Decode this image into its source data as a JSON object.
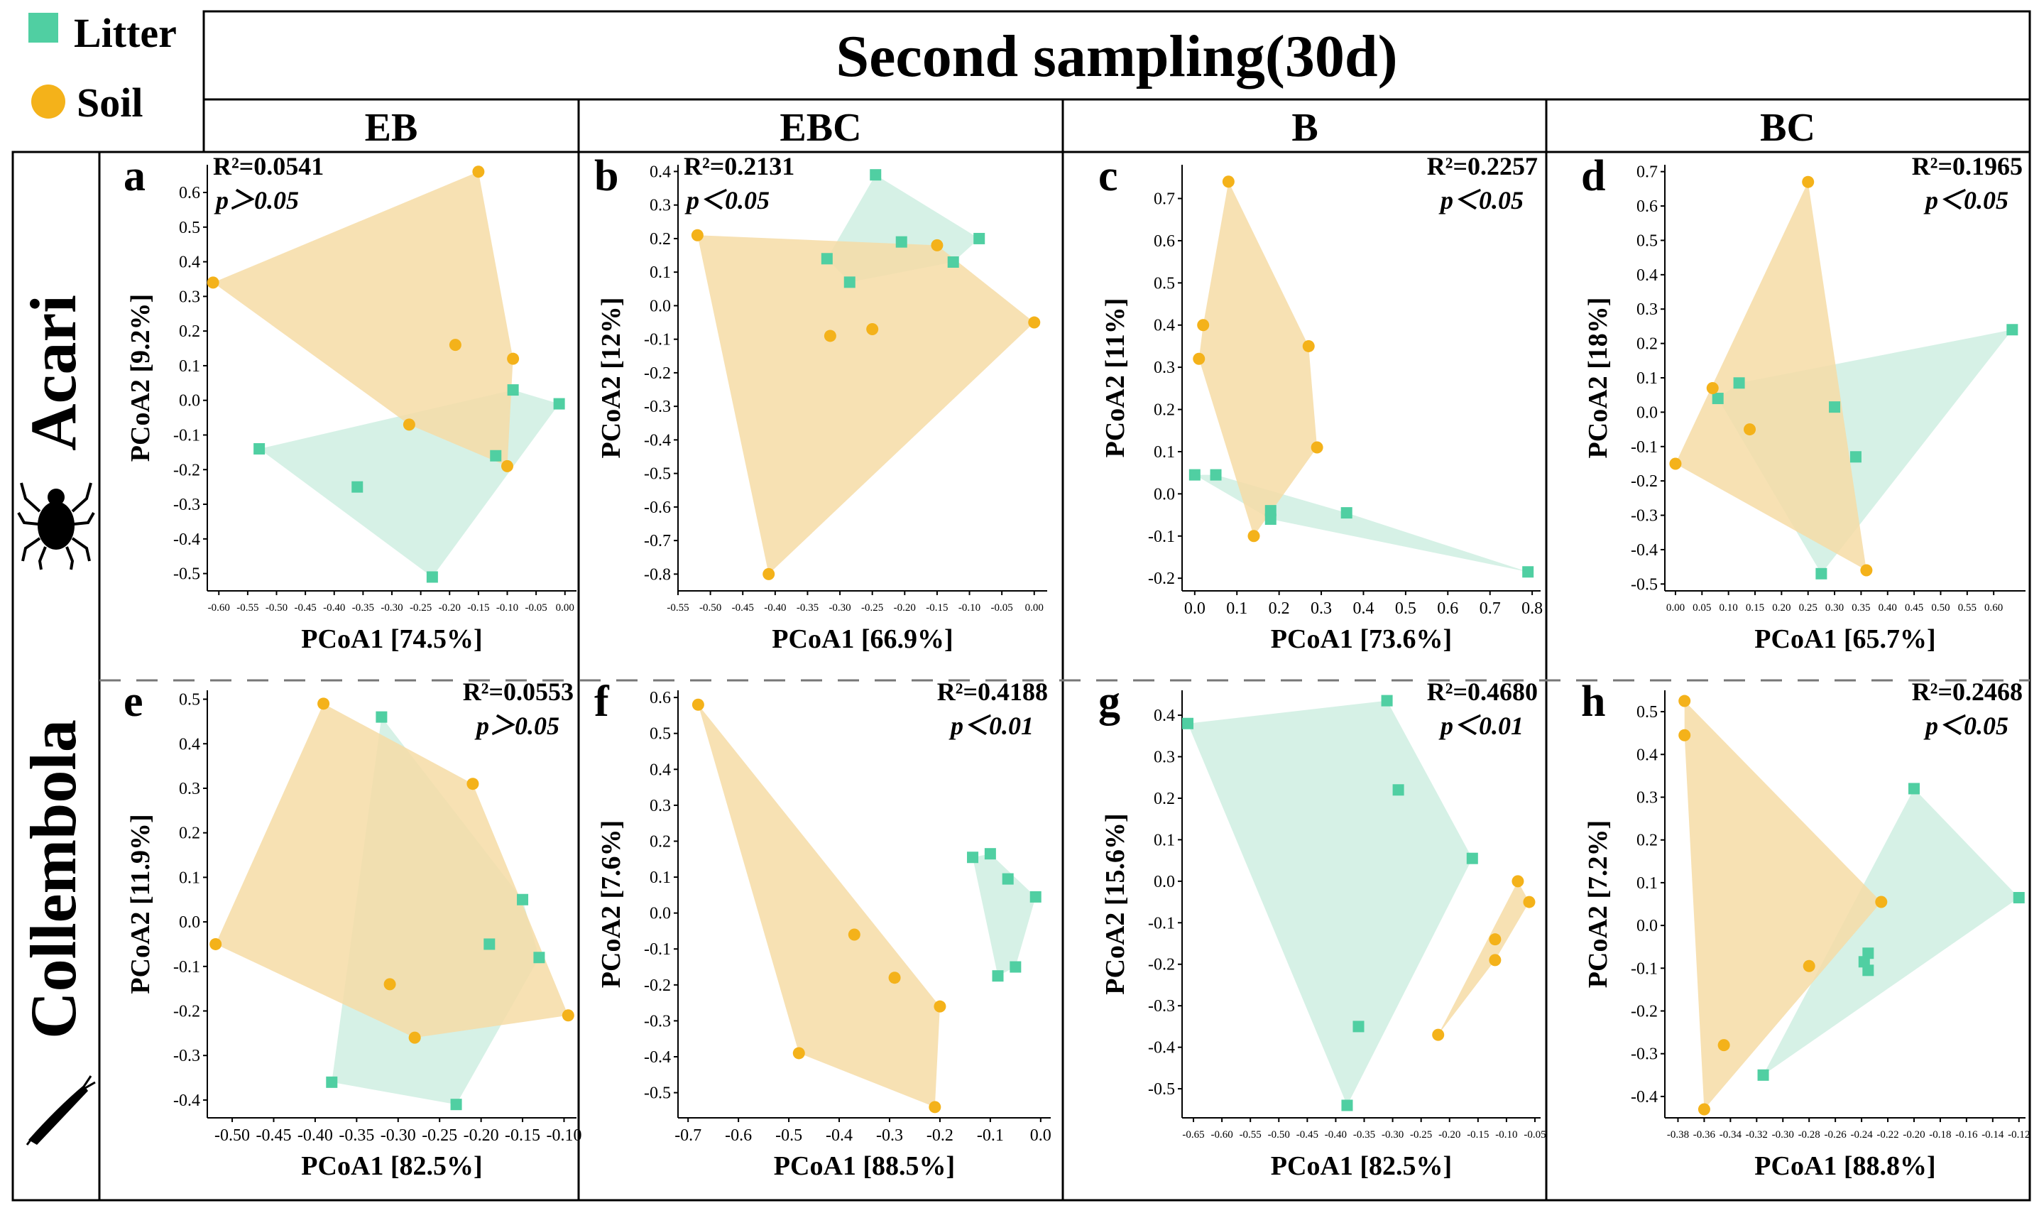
{
  "figure": {
    "title": "Second sampling(30d)",
    "legend": [
      {
        "label": "Litter",
        "color": "#50cfa2",
        "marker": "square"
      },
      {
        "label": "Soil",
        "color": "#f4b21a",
        "marker": "circle"
      }
    ],
    "columns": [
      "EB",
      "EBC",
      "B",
      "BC"
    ],
    "rows": [
      "Acari",
      "Collembola"
    ],
    "colors": {
      "litter_fill": "#cfeee2",
      "soil_fill": "#f6dca6",
      "litter_point": "#50cfa2",
      "soil_point": "#f4b21a"
    }
  },
  "chart_data": [
    {
      "panel": "a",
      "type": "scatter",
      "title": "",
      "r2_label": "R²=0.0541",
      "p_label": "p＞0.05",
      "xlabel": "PCoA1 [74.5%]",
      "ylabel": "PCoA2 [9.2%]",
      "xlim": [
        -0.62,
        0.02
      ],
      "ylim": [
        -0.55,
        0.68
      ],
      "xticks": [
        -0.6,
        -0.55,
        -0.5,
        -0.45,
        -0.4,
        -0.35,
        -0.3,
        -0.25,
        -0.2,
        -0.15,
        -0.1,
        -0.05,
        0.0
      ],
      "xtick_labels": [
        "-0.60",
        "-0.55",
        "-0.50",
        "-0.45",
        "-0.40",
        "-0.35",
        "-0.30",
        "-0.25",
        "-0.20",
        "-0.15",
        "-0.10",
        "-0.05",
        "0.00"
      ],
      "yticks": [
        -0.5,
        -0.4,
        -0.3,
        -0.2,
        -0.1,
        0.0,
        0.1,
        0.2,
        0.3,
        0.4,
        0.5,
        0.6
      ],
      "ytick_labels": [
        "-0.5",
        "-0.4",
        "-0.3",
        "-0.2",
        "-0.1",
        "0.0",
        "0.1",
        "0.2",
        "0.3",
        "0.4",
        "0.5",
        "0.6"
      ],
      "series": [
        {
          "name": "Litter",
          "points": [
            [
              -0.53,
              -0.14
            ],
            [
              -0.36,
              -0.25
            ],
            [
              -0.23,
              -0.51
            ],
            [
              -0.12,
              -0.16
            ],
            [
              -0.09,
              0.03
            ],
            [
              -0.01,
              -0.01
            ]
          ]
        },
        {
          "name": "Soil",
          "points": [
            [
              -0.61,
              0.34
            ],
            [
              -0.15,
              0.66
            ],
            [
              -0.09,
              0.12
            ],
            [
              -0.19,
              0.16
            ],
            [
              -0.27,
              -0.07
            ],
            [
              -0.1,
              -0.19
            ]
          ]
        }
      ]
    },
    {
      "panel": "b",
      "type": "scatter",
      "title": "",
      "r2_label": "R²=0.2131",
      "p_label": "p＜0.05",
      "xlabel": "PCoA1 [66.9%]",
      "ylabel": "PCoA2 [12%]",
      "xlim": [
        -0.55,
        0.02
      ],
      "ylim": [
        -0.85,
        0.42
      ],
      "xticks": [
        -0.55,
        -0.5,
        -0.45,
        -0.4,
        -0.35,
        -0.3,
        -0.25,
        -0.2,
        -0.15,
        -0.1,
        -0.05,
        0.0
      ],
      "xtick_labels": [
        "-0.55",
        "-0.50",
        "-0.45",
        "-0.40",
        "-0.35",
        "-0.30",
        "-0.25",
        "-0.20",
        "-0.15",
        "-0.10",
        "-0.05",
        "0.00"
      ],
      "yticks": [
        -0.8,
        -0.7,
        -0.6,
        -0.5,
        -0.4,
        -0.3,
        -0.2,
        -0.1,
        0.0,
        0.1,
        0.2,
        0.3,
        0.4
      ],
      "ytick_labels": [
        "-0.8",
        "-0.7",
        "-0.6",
        "-0.5",
        "-0.4",
        "-0.3",
        "-0.2",
        "-0.1",
        "0.0",
        "0.1",
        "0.2",
        "0.3",
        "0.4"
      ],
      "series": [
        {
          "name": "Litter",
          "points": [
            [
              -0.245,
              0.39
            ],
            [
              -0.085,
              0.2
            ],
            [
              -0.125,
              0.13
            ],
            [
              -0.205,
              0.19
            ],
            [
              -0.32,
              0.14
            ],
            [
              -0.285,
              0.07
            ]
          ]
        },
        {
          "name": "Soil",
          "points": [
            [
              -0.52,
              0.21
            ],
            [
              -0.15,
              0.18
            ],
            [
              0.0,
              -0.05
            ],
            [
              -0.41,
              -0.8
            ],
            [
              -0.315,
              -0.09
            ],
            [
              -0.25,
              -0.07
            ]
          ]
        }
      ]
    },
    {
      "panel": "c",
      "type": "scatter",
      "title": "",
      "r2_label": "R²=0.2257",
      "p_label": "p＜0.05",
      "xlabel": "PCoA1 [73.6%]",
      "ylabel": "PCoA2 [11%]",
      "xlim": [
        -0.03,
        0.82
      ],
      "ylim": [
        -0.23,
        0.78
      ],
      "xticks": [
        0.0,
        0.1,
        0.2,
        0.3,
        0.4,
        0.5,
        0.6,
        0.7,
        0.8
      ],
      "xtick_labels": [
        "0.0",
        "0.1",
        "0.2",
        "0.3",
        "0.4",
        "0.5",
        "0.6",
        "0.7",
        "0.8"
      ],
      "yticks": [
        -0.2,
        -0.1,
        0.0,
        0.1,
        0.2,
        0.3,
        0.4,
        0.5,
        0.6,
        0.7
      ],
      "ytick_labels": [
        "-0.2",
        "-0.1",
        "0.0",
        "0.1",
        "0.2",
        "0.3",
        "0.4",
        "0.5",
        "0.6",
        "0.7"
      ],
      "series": [
        {
          "name": "Litter",
          "points": [
            [
              0.0,
              0.045
            ],
            [
              0.05,
              0.045
            ],
            [
              0.18,
              -0.04
            ],
            [
              0.18,
              -0.06
            ],
            [
              0.36,
              -0.045
            ],
            [
              0.79,
              -0.185
            ]
          ]
        },
        {
          "name": "Soil",
          "points": [
            [
              0.08,
              0.74
            ],
            [
              0.02,
              0.4
            ],
            [
              0.01,
              0.32
            ],
            [
              0.27,
              0.35
            ],
            [
              0.29,
              0.11
            ],
            [
              0.14,
              -0.1
            ]
          ]
        }
      ]
    },
    {
      "panel": "d",
      "type": "scatter",
      "title": "",
      "r2_label": "R²=0.1965",
      "p_label": "p＜0.05",
      "xlabel": "PCoA1 [65.7%]",
      "ylabel": "PCoA2 [18%]",
      "xlim": [
        -0.02,
        0.66
      ],
      "ylim": [
        -0.52,
        0.72
      ],
      "xticks": [
        0.0,
        0.05,
        0.1,
        0.15,
        0.2,
        0.25,
        0.3,
        0.35,
        0.4,
        0.45,
        0.5,
        0.55,
        0.6
      ],
      "xtick_labels": [
        "0.00",
        "0.05",
        "0.10",
        "0.15",
        "0.20",
        "0.25",
        "0.30",
        "0.35",
        "0.40",
        "0.45",
        "0.50",
        "0.55",
        "0.60"
      ],
      "yticks": [
        -0.5,
        -0.4,
        -0.3,
        -0.2,
        -0.1,
        0.0,
        0.1,
        0.2,
        0.3,
        0.4,
        0.5,
        0.6,
        0.7
      ],
      "ytick_labels": [
        "-0.5",
        "-0.4",
        "-0.3",
        "-0.2",
        "-0.1",
        "0.0",
        "0.1",
        "0.2",
        "0.3",
        "0.4",
        "0.5",
        "0.6",
        "0.7"
      ],
      "series": [
        {
          "name": "Litter",
          "points": [
            [
              0.635,
              0.24
            ],
            [
              0.08,
              0.04
            ],
            [
              0.12,
              0.085
            ],
            [
              0.3,
              0.015
            ],
            [
              0.34,
              -0.13
            ],
            [
              0.275,
              -0.47
            ]
          ]
        },
        {
          "name": "Soil",
          "points": [
            [
              0.25,
              0.67
            ],
            [
              0.07,
              0.07
            ],
            [
              0.14,
              -0.05
            ],
            [
              0.0,
              -0.15
            ],
            [
              0.36,
              -0.46
            ]
          ]
        }
      ]
    },
    {
      "panel": "e",
      "type": "scatter",
      "title": "",
      "r2_label": "R²=0.0553",
      "p_label": "p＞0.05",
      "xlabel": "PCoA1 [82.5%]",
      "ylabel": "PCoA2 [11.9%]",
      "xlim": [
        -0.53,
        -0.085
      ],
      "ylim": [
        -0.44,
        0.52
      ],
      "xticks": [
        -0.5,
        -0.45,
        -0.4,
        -0.35,
        -0.3,
        -0.25,
        -0.2,
        -0.15,
        -0.1
      ],
      "xtick_labels": [
        "-0.50",
        "-0.45",
        "-0.40",
        "-0.35",
        "-0.30",
        "-0.25",
        "-0.20",
        "-0.15",
        "-0.10"
      ],
      "yticks": [
        -0.4,
        -0.3,
        -0.2,
        -0.1,
        0.0,
        0.1,
        0.2,
        0.3,
        0.4,
        0.5
      ],
      "ytick_labels": [
        "-0.4",
        "-0.3",
        "-0.2",
        "-0.1",
        "0.0",
        "0.1",
        "0.2",
        "0.3",
        "0.4",
        "0.5"
      ],
      "series": [
        {
          "name": "Litter",
          "points": [
            [
              -0.32,
              0.46
            ],
            [
              -0.15,
              0.05
            ],
            [
              -0.13,
              -0.08
            ],
            [
              -0.19,
              -0.05
            ],
            [
              -0.23,
              -0.41
            ],
            [
              -0.38,
              -0.36
            ]
          ]
        },
        {
          "name": "Soil",
          "points": [
            [
              -0.39,
              0.49
            ],
            [
              -0.21,
              0.31
            ],
            [
              -0.095,
              -0.21
            ],
            [
              -0.28,
              -0.26
            ],
            [
              -0.31,
              -0.14
            ],
            [
              -0.52,
              -0.05
            ]
          ]
        }
      ]
    },
    {
      "panel": "f",
      "type": "scatter",
      "title": "",
      "r2_label": "R²=0.4188",
      "p_label": "p＜0.01",
      "xlabel": "PCoA1 [88.5%]",
      "ylabel": "PCoA2 [7.6%]",
      "xlim": [
        -0.72,
        0.02
      ],
      "ylim": [
        -0.57,
        0.62
      ],
      "xticks": [
        -0.7,
        -0.6,
        -0.5,
        -0.4,
        -0.3,
        -0.2,
        -0.1,
        0.0
      ],
      "xtick_labels": [
        "-0.7",
        "-0.6",
        "-0.5",
        "-0.4",
        "-0.3",
        "-0.2",
        "-0.1",
        "0.0"
      ],
      "yticks": [
        -0.5,
        -0.4,
        -0.3,
        -0.2,
        -0.1,
        0.0,
        0.1,
        0.2,
        0.3,
        0.4,
        0.5,
        0.6
      ],
      "ytick_labels": [
        "-0.5",
        "-0.4",
        "-0.3",
        "-0.2",
        "-0.1",
        "0.0",
        "0.1",
        "0.2",
        "0.3",
        "0.4",
        "0.5",
        "0.6"
      ],
      "series": [
        {
          "name": "Litter",
          "points": [
            [
              -0.135,
              0.155
            ],
            [
              -0.1,
              0.165
            ],
            [
              -0.065,
              0.095
            ],
            [
              -0.01,
              0.045
            ],
            [
              -0.05,
              -0.15
            ],
            [
              -0.085,
              -0.175
            ]
          ]
        },
        {
          "name": "Soil",
          "points": [
            [
              -0.68,
              0.58
            ],
            [
              -0.37,
              -0.06
            ],
            [
              -0.29,
              -0.18
            ],
            [
              -0.2,
              -0.26
            ],
            [
              -0.21,
              -0.54
            ],
            [
              -0.48,
              -0.39
            ]
          ]
        }
      ]
    },
    {
      "panel": "g",
      "type": "scatter",
      "title": "",
      "r2_label": "R²=0.4680",
      "p_label": "p＜0.01",
      "xlabel": "PCoA1 [82.5%]",
      "ylabel": "PCoA2 [15.6%]",
      "xlim": [
        -0.67,
        -0.04
      ],
      "ylim": [
        -0.57,
        0.46
      ],
      "xticks": [
        -0.65,
        -0.6,
        -0.55,
        -0.5,
        -0.45,
        -0.4,
        -0.35,
        -0.3,
        -0.25,
        -0.2,
        -0.15,
        -0.1,
        -0.05
      ],
      "xtick_labels": [
        "-0.65",
        "-0.60",
        "-0.55",
        "-0.50",
        "-0.45",
        "-0.40",
        "-0.35",
        "-0.30",
        "-0.25",
        "-0.20",
        "-0.15",
        "-0.10",
        "-0.05"
      ],
      "yticks": [
        -0.5,
        -0.4,
        -0.3,
        -0.2,
        -0.1,
        0.0,
        0.1,
        0.2,
        0.3,
        0.4
      ],
      "ytick_labels": [
        "-0.5",
        "-0.4",
        "-0.3",
        "-0.2",
        "-0.1",
        "0.0",
        "0.1",
        "0.2",
        "0.3",
        "0.4"
      ],
      "series": [
        {
          "name": "Litter",
          "points": [
            [
              -0.66,
              0.38
            ],
            [
              -0.31,
              0.435
            ],
            [
              -0.29,
              0.22
            ],
            [
              -0.16,
              0.055
            ],
            [
              -0.36,
              -0.35
            ],
            [
              -0.38,
              -0.54
            ]
          ]
        },
        {
          "name": "Soil",
          "points": [
            [
              -0.08,
              0.0
            ],
            [
              -0.06,
              -0.05
            ],
            [
              -0.12,
              -0.14
            ],
            [
              -0.12,
              -0.19
            ],
            [
              -0.22,
              -0.37
            ]
          ]
        }
      ]
    },
    {
      "panel": "h",
      "type": "scatter",
      "title": "",
      "r2_label": "R²=0.2468",
      "p_label": "p＜0.05",
      "xlabel": "PCoA1 [88.8%]",
      "ylabel": "PCoA2 [7.2%]",
      "xlim": [
        -0.39,
        -0.115
      ],
      "ylim": [
        -0.45,
        0.55
      ],
      "xticks": [
        -0.38,
        -0.36,
        -0.34,
        -0.32,
        -0.3,
        -0.28,
        -0.26,
        -0.24,
        -0.22,
        -0.2,
        -0.18,
        -0.16,
        -0.14,
        -0.12
      ],
      "xtick_labels": [
        "-0.38",
        "-0.36",
        "-0.34",
        "-0.32",
        "-0.30",
        "-0.28",
        "-0.26",
        "-0.24",
        "-0.22",
        "-0.20",
        "-0.18",
        "-0.16",
        "-0.14",
        "-0.12"
      ],
      "yticks": [
        -0.4,
        -0.3,
        -0.2,
        -0.1,
        0.0,
        0.1,
        0.2,
        0.3,
        0.4,
        0.5
      ],
      "ytick_labels": [
        "-0.4",
        "-0.3",
        "-0.2",
        "-0.1",
        "0.0",
        "0.1",
        "0.2",
        "0.3",
        "0.4",
        "0.5"
      ],
      "series": [
        {
          "name": "Litter",
          "points": [
            [
              -0.2,
              0.32
            ],
            [
              -0.12,
              0.065
            ],
            [
              -0.235,
              -0.065
            ],
            [
              -0.238,
              -0.085
            ],
            [
              -0.235,
              -0.105
            ],
            [
              -0.315,
              -0.35
            ]
          ]
        },
        {
          "name": "Soil",
          "points": [
            [
              -0.375,
              0.525
            ],
            [
              -0.375,
              0.445
            ],
            [
              -0.225,
              0.055
            ],
            [
              -0.28,
              -0.095
            ],
            [
              -0.345,
              -0.28
            ],
            [
              -0.36,
              -0.43
            ]
          ]
        }
      ]
    }
  ]
}
